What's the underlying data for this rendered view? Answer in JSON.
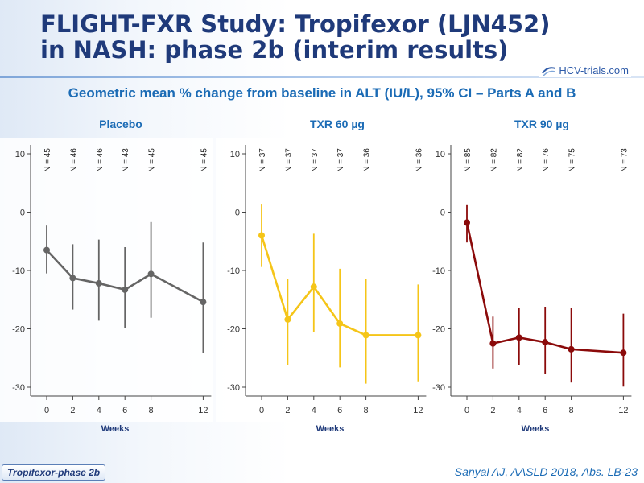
{
  "title_line1": "FLIGHT-FXR Study: Tropifexor (LJN452)",
  "title_line2": "in NASH: phase 2b (interim results)",
  "logo_text": "HCV-trials.com",
  "subtitle": "Geometric mean % change from baseline in ALT (IU/L), 95% CI – Parts A and B",
  "badge": "Tropifexor-phase 2b",
  "citation": "Sanyal AJ, AASLD 2018, Abs. LB-23",
  "chart_data": [
    {
      "type": "line",
      "title": "Placebo",
      "color": "#656565",
      "xlabel": "Weeks",
      "x": [
        0,
        2,
        4,
        6,
        8,
        12
      ],
      "y": [
        -6.5,
        -11.3,
        -12.2,
        -13.3,
        -10.6,
        -15.4
      ],
      "ci_low": [
        -10.5,
        -16.7,
        -18.6,
        -19.8,
        -18.1,
        -24.2
      ],
      "ci_high": [
        -2.3,
        -5.5,
        -4.7,
        -6.0,
        -1.7,
        -5.2
      ],
      "n_labels": [
        "N = 45",
        "N = 46",
        "N = 46",
        "N = 43",
        "N = 45",
        "N = 45"
      ],
      "yticks": [
        10,
        0,
        -10,
        -20,
        -30
      ],
      "ylim": [
        -31,
        11
      ]
    },
    {
      "type": "line",
      "title": "TXR 60 µg",
      "color": "#f5c518",
      "xlabel": "Weeks",
      "x": [
        0,
        2,
        4,
        6,
        8,
        12
      ],
      "y": [
        -4.0,
        -18.4,
        -12.8,
        -19.1,
        -21.1,
        -21.1
      ],
      "ci_low": [
        -9.4,
        -26.2,
        -20.6,
        -26.6,
        -29.4,
        -29.0
      ],
      "ci_high": [
        1.3,
        -11.4,
        -3.7,
        -9.7,
        -11.4,
        -12.4
      ],
      "n_labels": [
        "N = 37",
        "N = 37",
        "N = 37",
        "N = 37",
        "N = 36",
        "N = 36"
      ],
      "yticks": [
        10,
        0,
        -10,
        -20,
        -30
      ],
      "ylim": [
        -31,
        11
      ]
    },
    {
      "type": "line",
      "title": "TXR 90 µg",
      "color": "#8b0a0a",
      "xlabel": "Weeks",
      "x": [
        0,
        2,
        4,
        6,
        8,
        12
      ],
      "y": [
        -1.8,
        -22.5,
        -21.5,
        -22.3,
        -23.5,
        -24.1
      ],
      "ci_low": [
        -5.2,
        -26.8,
        -26.2,
        -27.8,
        -29.2,
        -29.9
      ],
      "ci_high": [
        1.2,
        -17.9,
        -16.4,
        -16.2,
        -16.4,
        -17.4
      ],
      "n_labels": [
        "N = 85",
        "N = 82",
        "N = 82",
        "N = 76",
        "N = 75",
        "N = 73"
      ],
      "yticks": [
        10,
        0,
        -10,
        -20,
        -30
      ],
      "ylim": [
        -31,
        11
      ]
    }
  ]
}
